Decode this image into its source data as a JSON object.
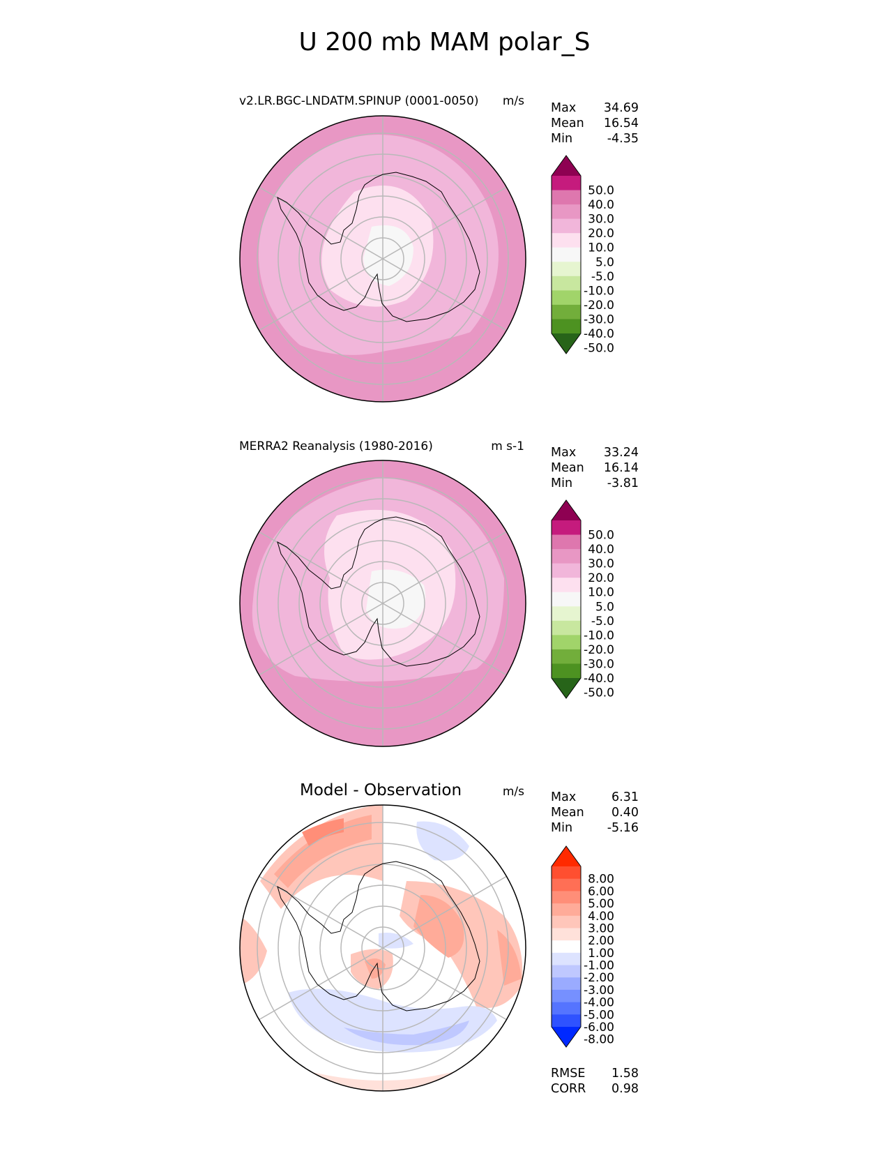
{
  "title": "U 200 mb MAM polar_S",
  "panels": [
    {
      "id": "test",
      "title": "v2.LR.BGC-LNDATM.SPINUP (0001-0050)",
      "units": "m/s",
      "stats": [
        {
          "label": "Max",
          "value": "34.69"
        },
        {
          "label": "Mean",
          "value": "16.54"
        },
        {
          "label": "Min",
          "value": "-4.35"
        }
      ],
      "colorbar": {
        "labels": [
          "50.0",
          "40.0",
          "30.0",
          "20.0",
          "10.0",
          "5.0",
          "-5.0",
          "-10.0",
          "-20.0",
          "-30.0",
          "-40.0",
          "-50.0"
        ],
        "colors": [
          "#8e0152",
          "#c51b7d",
          "#de77ae",
          "#e897c4",
          "#f1b6da",
          "#fde0ef",
          "#f7f7f7",
          "#e6f5d0",
          "#c8e79f",
          "#a1d46a",
          "#72ae3b",
          "#4d9221",
          "#276419"
        ]
      }
    },
    {
      "id": "ref",
      "title": "MERRA2 Reanalysis (1980-2016)",
      "units": "m s-1",
      "stats": [
        {
          "label": "Max",
          "value": "33.24"
        },
        {
          "label": "Mean",
          "value": "16.14"
        },
        {
          "label": "Min",
          "value": "-3.81"
        }
      ],
      "colorbar": {
        "labels": [
          "50.0",
          "40.0",
          "30.0",
          "20.0",
          "10.0",
          "5.0",
          "-5.0",
          "-10.0",
          "-20.0",
          "-30.0",
          "-40.0",
          "-50.0"
        ],
        "colors": [
          "#8e0152",
          "#c51b7d",
          "#de77ae",
          "#e897c4",
          "#f1b6da",
          "#fde0ef",
          "#f7f7f7",
          "#e6f5d0",
          "#c8e79f",
          "#a1d46a",
          "#72ae3b",
          "#4d9221",
          "#276419"
        ]
      }
    },
    {
      "id": "diff",
      "title": "Model - Observation",
      "units": "m/s",
      "stats": [
        {
          "label": "Max",
          "value": "6.31"
        },
        {
          "label": "Mean",
          "value": "0.40"
        },
        {
          "label": "Min",
          "value": "-5.16"
        }
      ],
      "extra_stats": [
        {
          "label": "RMSE",
          "value": "1.58"
        },
        {
          "label": "CORR",
          "value": "0.98"
        }
      ],
      "colorbar": {
        "labels": [
          "8.00",
          "6.00",
          "5.00",
          "4.00",
          "3.00",
          "2.00",
          "1.00",
          "-1.00",
          "-2.00",
          "-3.00",
          "-4.00",
          "-5.00",
          "-6.00",
          "-8.00"
        ],
        "colors": [
          "#ff2a00",
          "#ff4f30",
          "#ff6f55",
          "#ff8e78",
          "#ffab99",
          "#ffc6ba",
          "#ffe1da",
          "#ffffff",
          "#dde3ff",
          "#bfc8ff",
          "#9aabff",
          "#7690ff",
          "#5574ff",
          "#2f52ff",
          "#0029ff"
        ]
      }
    }
  ]
}
